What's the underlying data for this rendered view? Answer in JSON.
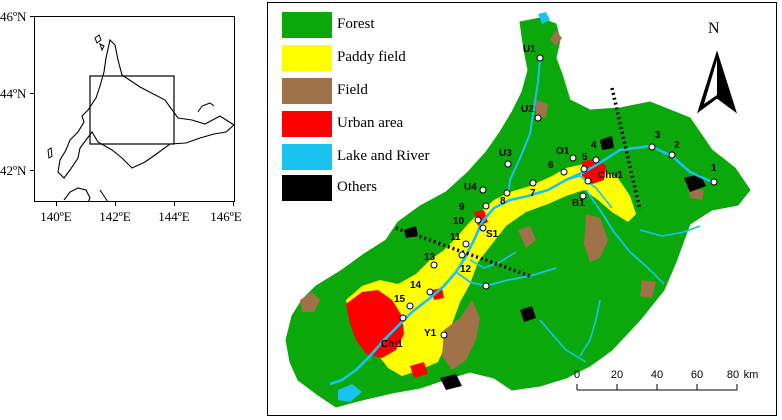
{
  "inset": {
    "lat_labels": [
      "46ºN",
      "44ºN",
      "42ºN"
    ],
    "lon_labels": [
      "140ºE",
      "142ºE",
      "144ºE",
      "146ºE"
    ]
  },
  "legend": [
    {
      "label": "Forest",
      "color": "#0aa80a"
    },
    {
      "label": "Paddy field",
      "color": "#ffff00"
    },
    {
      "label": "Field",
      "color": "#a0724a"
    },
    {
      "label": "Urban area",
      "color": "#ff0000"
    },
    {
      "label": "Lake and River",
      "color": "#19c3f0"
    },
    {
      "label": "Others",
      "color": "#000000"
    }
  ],
  "north_label": "N",
  "scale": {
    "ticks": [
      "0",
      "20",
      "40",
      "60",
      "80"
    ],
    "unit": "km"
  },
  "stations": [
    "U1",
    "U2",
    "U3",
    "U4",
    "O1",
    "Chu1",
    "B1",
    "S1",
    "Y1",
    "Chi1",
    "1",
    "2",
    "3",
    "4",
    "5",
    "6",
    "7",
    "8",
    "9",
    "10",
    "11",
    "12",
    "13",
    "14",
    "15"
  ]
}
